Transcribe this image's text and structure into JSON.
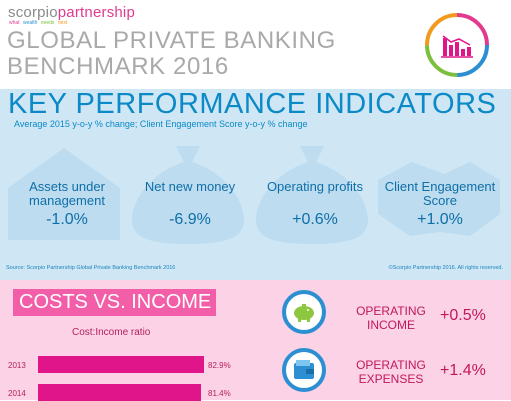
{
  "header": {
    "brand_a": "scorpio",
    "brand_b": "partnership",
    "tagline": [
      "what",
      "wealth",
      "needs",
      "next"
    ],
    "title_line1": "GLOBAL PRIVATE BANKING",
    "title_line2": "BENCHMARK 2016"
  },
  "kpi": {
    "title": "KEY PERFORMANCE INDICATORS",
    "subtitle": "Average 2015 y-o-y % change; Client Engagement Score y-o-y % change",
    "items": [
      {
        "label": "Assets under management",
        "value": "-1.0%",
        "icon": "house-icon"
      },
      {
        "label": "Net new money",
        "value": "-6.9%",
        "icon": "money-bag-icon"
      },
      {
        "label": "Operating profits",
        "value": "+0.6%",
        "icon": "money-bag-icon"
      },
      {
        "label": "Client Engagement Score",
        "value": "+1.0%",
        "icon": "handshake-icon"
      }
    ],
    "source": "Source: Scorpio Partnership Global Private Banking Benchmark 2016",
    "copyright": "©Scorpio Partnership 2016. All rights reserved."
  },
  "costs": {
    "title": "COSTS VS. INCOME",
    "ratio_label": "Cost:Income ratio",
    "bars": [
      {
        "year": "2013",
        "value": 82.9,
        "label": "82.9%"
      },
      {
        "year": "2014",
        "value": 81.4,
        "label": "81.4%"
      }
    ],
    "operating": [
      {
        "label_line1": "OPERATING",
        "label_line2": "INCOME",
        "value": "+0.5%",
        "icon": "piggy-bank-icon"
      },
      {
        "label_line1": "OPERATING",
        "label_line2": "EXPENSES",
        "value": "+1.4%",
        "icon": "wallet-icon"
      }
    ]
  },
  "colors": {
    "kpi_blue": "#0b8ac7",
    "kpi_bg": "#cfe6f4",
    "pink": "#e0158a",
    "pink_bg": "#fbd2e6"
  }
}
